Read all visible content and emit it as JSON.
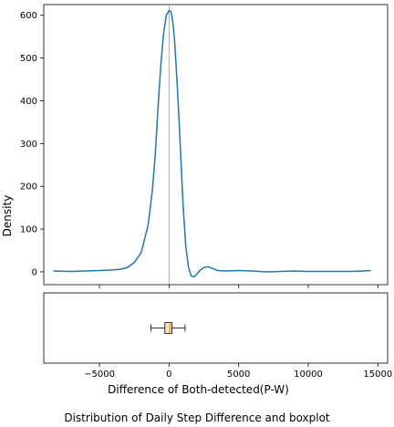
{
  "caption": "Distribution of Daily Step Difference and boxplot",
  "chart_data": [
    {
      "type": "line",
      "subtype": "density",
      "ylabel": "Density",
      "xlim": [
        -9000,
        15700
      ],
      "ylim": [
        -30,
        625
      ],
      "yticks": [
        0,
        100,
        200,
        300,
        400,
        500,
        600
      ],
      "vline_x": 0,
      "colors": {
        "curve": "#1f77b4",
        "vline": "#e88888"
      },
      "x": [
        -8300,
        -7000,
        -6000,
        -5000,
        -4200,
        -3500,
        -3000,
        -2500,
        -2000,
        -1500,
        -1200,
        -1000,
        -800,
        -600,
        -400,
        -200,
        0,
        100,
        200,
        300,
        400,
        600,
        800,
        1000,
        1200,
        1400,
        1600,
        1800,
        2000,
        2200,
        2500,
        2800,
        3100,
        3500,
        4000,
        5000,
        6000,
        7000,
        8000,
        9000,
        10000,
        11000,
        12000,
        13000,
        14000,
        14500
      ],
      "y": [
        2,
        1,
        2,
        3,
        4,
        6,
        10,
        22,
        45,
        110,
        190,
        270,
        380,
        480,
        555,
        600,
        611,
        610,
        600,
        575,
        540,
        430,
        300,
        160,
        60,
        10,
        -10,
        -12,
        -5,
        3,
        10,
        12,
        8,
        3,
        2,
        3,
        2,
        0,
        1,
        2,
        1,
        1,
        1,
        1,
        2,
        3
      ]
    },
    {
      "type": "boxplot",
      "xlabel": "Difference of Both-detected(P-W)",
      "xlim": [
        -9000,
        15700
      ],
      "xticks": [
        -5000,
        0,
        5000,
        10000,
        15000
      ],
      "xtick_labels": [
        "−5000",
        "0",
        "5000",
        "10000",
        "15000"
      ],
      "whisker_low": -1300,
      "q1": -300,
      "median": 50,
      "q3": 200,
      "whisker_high": 1150,
      "colors": {
        "box": "#ffe7cc",
        "median": "#ff7f0e"
      }
    }
  ]
}
